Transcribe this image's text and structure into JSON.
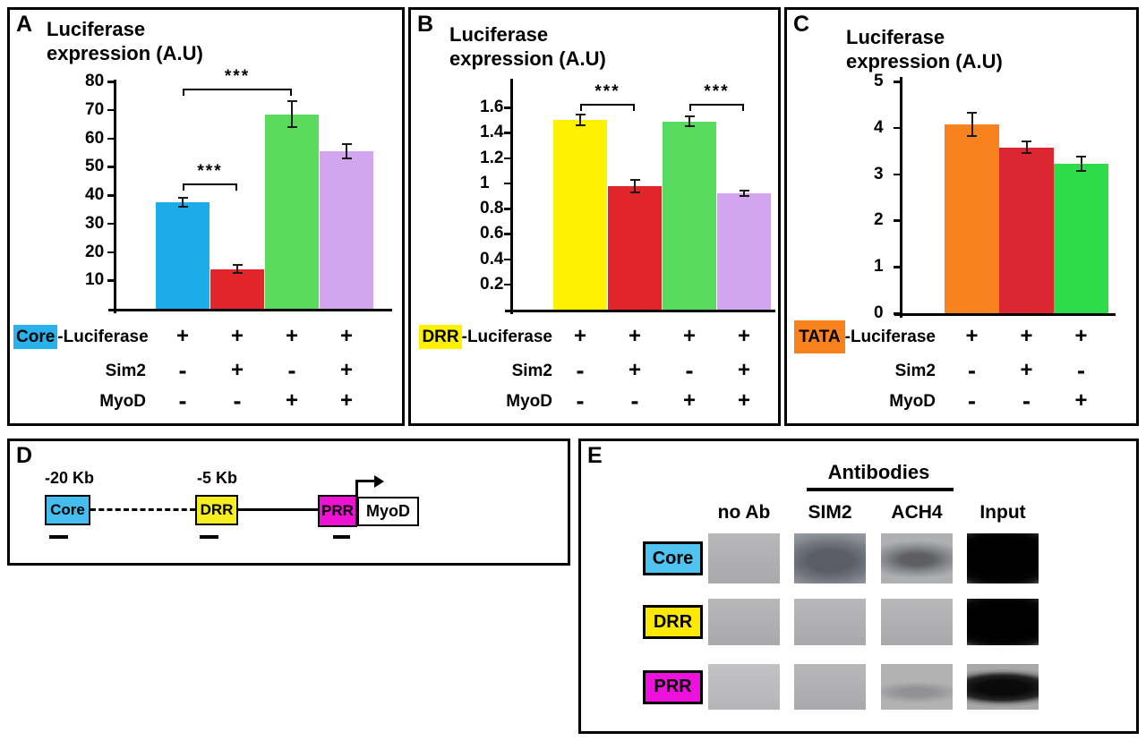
{
  "chart_data": [
    {
      "type": "bar",
      "letter": "A",
      "title": [
        "Luciferase",
        "expression (A.U)"
      ],
      "categories": [
        "Core-Luciferase",
        "Core-Luciferase + Sim2",
        "Core-Luciferase + MyoD",
        "Core-Luciferase + Sim2 + MyoD"
      ],
      "values": [
        37.5,
        14,
        68.5,
        55.5
      ],
      "errors": [
        1.5,
        1.3,
        4.5,
        2.5
      ],
      "bar_colors": [
        "#1BACE9",
        "#E2242B",
        "#5BDB5B",
        "#D2A5EF"
      ],
      "ylim": [
        0,
        80
      ],
      "yticks": [
        "10",
        "20",
        "30",
        "40",
        "50",
        "60",
        "70",
        "80"
      ],
      "significance": [
        {
          "from": 0,
          "to": 1,
          "label": "***",
          "y_value": 44
        },
        {
          "from": 0,
          "to": 2,
          "label": "***",
          "y_value": 77.5
        }
      ],
      "conditions": [
        {
          "highlight": "Core",
          "highlight_color": "#29B2EC",
          "rest": "-Luciferase",
          "values": [
            "+",
            "+",
            "+",
            "+"
          ]
        },
        {
          "highlight": null,
          "rest": "Sim2",
          "values": [
            "-",
            "+",
            "-",
            "+"
          ]
        },
        {
          "highlight": null,
          "rest": "MyoD",
          "values": [
            "-",
            "-",
            "+",
            "+"
          ]
        }
      ]
    },
    {
      "type": "bar",
      "letter": "B",
      "title": [
        "Luciferase",
        "expression (A.U)"
      ],
      "categories": [
        "DRR-Luciferase",
        "DRR-Luciferase + Sim2",
        "DRR-Luciferase + MyoD",
        "DRR-Luciferase + Sim2 + MyoD"
      ],
      "values": [
        1.5,
        0.98,
        1.49,
        0.92
      ],
      "errors": [
        0.04,
        0.05,
        0.04,
        0.02
      ],
      "bar_colors": [
        "#FEF102",
        "#E2242B",
        "#57DB5F",
        "#D2A5EF"
      ],
      "ylim": [
        0,
        1.8
      ],
      "yticks": [
        "0.2",
        "0.4",
        "0.6",
        "0.8",
        "1",
        "1.2",
        "1.4",
        "1.6"
      ],
      "significance": [
        {
          "from": 0,
          "to": 1,
          "label": "***",
          "y_value": 1.63
        },
        {
          "from": 2,
          "to": 3,
          "label": "***",
          "y_value": 1.63
        }
      ],
      "conditions": [
        {
          "highlight": "DRR",
          "highlight_color": "#FFF000",
          "rest": "-Luciferase",
          "values": [
            "+",
            "+",
            "+",
            "+"
          ]
        },
        {
          "highlight": null,
          "rest": "Sim2",
          "values": [
            "-",
            "+",
            "-",
            "+"
          ]
        },
        {
          "highlight": null,
          "rest": "MyoD",
          "values": [
            "-",
            "-",
            "+",
            "+"
          ]
        }
      ]
    },
    {
      "type": "bar",
      "letter": "C",
      "title": [
        "Luciferase",
        "expression (A.U)"
      ],
      "categories": [
        "TATA-Luciferase",
        "TATA-Luciferase + Sim2",
        "TATA-Luciferase + MyoD"
      ],
      "values": [
        4.08,
        3.58,
        3.22
      ],
      "errors": [
        0.25,
        0.13,
        0.16
      ],
      "bar_colors": [
        "#F8821D",
        "#DC2631",
        "#2EDC49"
      ],
      "ylim": [
        0,
        5
      ],
      "yticks": [
        "0",
        "1",
        "2",
        "3",
        "4",
        "5"
      ],
      "significance": [],
      "conditions": [
        {
          "highlight": "TATA",
          "highlight_color": "#F8821D",
          "highlight_big": true,
          "rest": "-Luciferase",
          "values": [
            "+",
            "+",
            "+"
          ]
        },
        {
          "highlight": null,
          "rest": "Sim2",
          "values": [
            "-",
            "+",
            "-"
          ]
        },
        {
          "highlight": null,
          "rest": "MyoD",
          "values": [
            "-",
            "-",
            "+"
          ]
        }
      ]
    }
  ],
  "diagram": {
    "letter": "D",
    "core": {
      "label": "Core",
      "distance": "-20 Kb",
      "color": "#45BDEE"
    },
    "drr": {
      "label": "DRR",
      "distance": "-5 Kb",
      "color": "#F6EE20"
    },
    "prr": {
      "label": "PRR",
      "color": "#EE13D2"
    },
    "gene": {
      "label": "MyoD"
    }
  },
  "gel": {
    "letter": "E",
    "group_header": "Antibodies",
    "columns": [
      "no Ab",
      "SIM2",
      "ACH4",
      "Input"
    ],
    "rows": [
      {
        "label": "Core",
        "color": "#4FC4F2",
        "bands": [
          "none",
          "smear-strong",
          "medium",
          "blob"
        ]
      },
      {
        "label": "DRR",
        "color": "#FFE900",
        "bands": [
          "none",
          "none",
          "none",
          "blob"
        ]
      },
      {
        "label": "PRR",
        "color": "#EE10DC",
        "bands": [
          "none-light",
          "none",
          "faint",
          "dark"
        ]
      }
    ]
  }
}
